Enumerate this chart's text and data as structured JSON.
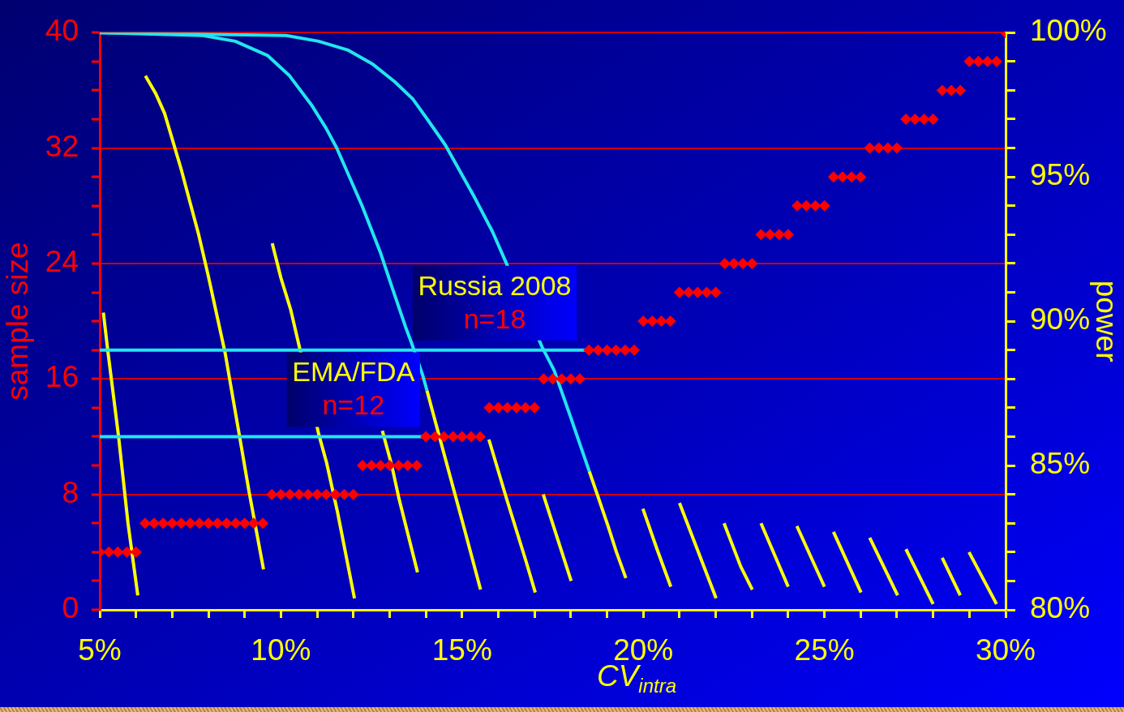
{
  "chart_data": {
    "type": "line",
    "xlabel": "CV$_{intra}$",
    "ylabel": "sample size",
    "y2label": "power",
    "xlim": [
      5,
      30
    ],
    "xticks": [
      {
        "value": 5,
        "label": "5%"
      },
      {
        "value": 6,
        "label": null
      },
      {
        "value": 7,
        "label": null
      },
      {
        "value": 8,
        "label": null
      },
      {
        "value": 9,
        "label": null
      },
      {
        "value": 10,
        "label": "10%"
      },
      {
        "value": 11,
        "label": null
      },
      {
        "value": 12,
        "label": null
      },
      {
        "value": 13,
        "label": null
      },
      {
        "value": 14,
        "label": null
      },
      {
        "value": 15,
        "label": "15%"
      },
      {
        "value": 16,
        "label": null
      },
      {
        "value": 17,
        "label": null
      },
      {
        "value": 18,
        "label": null
      },
      {
        "value": 19,
        "label": null
      },
      {
        "value": 20,
        "label": "20%"
      },
      {
        "value": 21,
        "label": null
      },
      {
        "value": 22,
        "label": null
      },
      {
        "value": 23,
        "label": null
      },
      {
        "value": 24,
        "label": null
      },
      {
        "value": 25,
        "label": "25%"
      },
      {
        "value": 26,
        "label": null
      },
      {
        "value": 27,
        "label": null
      },
      {
        "value": 28,
        "label": null
      },
      {
        "value": 29,
        "label": null
      },
      {
        "value": 30,
        "label": "30%"
      }
    ],
    "ylim": [
      0,
      40
    ],
    "yticks": [
      0,
      {
        "value": 2,
        "label": null
      },
      {
        "value": 4,
        "label": null
      },
      {
        "value": 6,
        "label": null
      },
      8,
      {
        "value": 10,
        "label": null
      },
      {
        "value": 12,
        "label": null
      },
      {
        "value": 14,
        "label": null
      },
      16,
      {
        "value": 18,
        "label": null
      },
      {
        "value": 20,
        "label": null
      },
      {
        "value": 22,
        "label": null
      },
      24,
      {
        "value": 26,
        "label": null
      },
      {
        "value": 28,
        "label": null
      },
      {
        "value": 30,
        "label": null
      },
      32,
      {
        "value": 34,
        "label": null
      },
      {
        "value": 36,
        "label": null
      },
      {
        "value": 38,
        "label": null
      },
      40
    ],
    "y2lim": [
      80,
      100
    ],
    "y2ticks": [
      {
        "value": 80,
        "label": "80%"
      },
      {
        "value": 81,
        "label": null
      },
      {
        "value": 82,
        "label": null
      },
      {
        "value": 83,
        "label": null
      },
      {
        "value": 84,
        "label": null
      },
      {
        "value": 85,
        "label": "85%"
      },
      {
        "value": 86,
        "label": null
      },
      {
        "value": 87,
        "label": null
      },
      {
        "value": 88,
        "label": null
      },
      {
        "value": 89,
        "label": null
      },
      {
        "value": 90,
        "label": "90%"
      },
      {
        "value": 91,
        "label": null
      },
      {
        "value": 92,
        "label": null
      },
      {
        "value": 93,
        "label": null
      },
      {
        "value": 94,
        "label": null
      },
      {
        "value": 95,
        "label": "95%"
      },
      {
        "value": 96,
        "label": null
      },
      {
        "value": 97,
        "label": null
      },
      {
        "value": 98,
        "label": null
      },
      {
        "value": 99,
        "label": null
      },
      {
        "value": 100,
        "label": "100%"
      }
    ],
    "grid": "y",
    "legend": false,
    "annotations": [
      {
        "text": "Russia 2008\nn=18",
        "x": 15.9,
        "y": 18
      },
      {
        "text": "EMA/FDA\nn=12",
        "x": 12.0,
        "y": 12
      }
    ],
    "series": [
      {
        "type": "scatter",
        "color": "#ff0000",
        "marker": "diamond",
        "x": [
          5,
          5.25,
          5.5,
          5.75,
          6,
          6.25,
          6.5,
          6.75,
          7,
          7.25,
          7.5,
          7.75,
          8,
          8.25,
          8.5,
          8.75,
          9,
          9.25,
          9.5,
          9.75,
          10,
          10.25,
          10.5,
          10.75,
          11,
          11.25,
          11.5,
          11.75,
          12,
          12.25,
          12.5,
          12.75,
          13,
          13.25,
          13.5,
          13.75,
          14,
          14.25,
          14.5,
          14.75,
          15,
          15.25,
          15.5,
          15.75,
          16,
          16.25,
          16.5,
          16.75,
          17,
          17.25,
          17.5,
          17.75,
          18,
          18.25,
          18.5,
          18.75,
          19,
          19.25,
          19.5,
          19.75,
          20,
          20.25,
          20.5,
          20.75,
          21,
          21.25,
          21.5,
          21.75,
          22,
          22.25,
          22.5,
          22.75,
          23,
          23.25,
          23.5,
          23.75,
          24,
          24.25,
          24.5,
          24.75,
          25,
          25.25,
          25.5,
          25.75,
          26,
          26.25,
          26.5,
          26.75,
          27,
          27.25,
          27.5,
          27.75,
          28,
          28.25,
          28.5,
          28.75,
          29,
          29.25,
          29.5,
          29.75,
          30
        ],
        "values": [
          4,
          4,
          4,
          4,
          4,
          6,
          6,
          6,
          6,
          6,
          6,
          6,
          6,
          6,
          6,
          6,
          6,
          6,
          6,
          8,
          8,
          8,
          8,
          8,
          8,
          8,
          8,
          8,
          8,
          10,
          10,
          10,
          10,
          10,
          10,
          10,
          12,
          12,
          12,
          12,
          12,
          12,
          12,
          14,
          14,
          14,
          14,
          14,
          14,
          16,
          16,
          16,
          16,
          16,
          18,
          18,
          18,
          18,
          18,
          18,
          20,
          20,
          20,
          20,
          22,
          22,
          22,
          22,
          22,
          24,
          24,
          24,
          24,
          26,
          26,
          26,
          26,
          28,
          28,
          28,
          28,
          30,
          30,
          30,
          30,
          32,
          32,
          32,
          32,
          34,
          34,
          34,
          34,
          36,
          36,
          36,
          38,
          38,
          38,
          38,
          40
        ]
      },
      {
        "type": "line",
        "axis": "y2",
        "color": "#22e5ee",
        "marker": "none",
        "x": [
          5,
          7.84,
          8.74,
          9.64,
          10.24,
          10.84,
          11.24,
          11.54,
          12.24,
          12.74,
          13.06,
          13.44,
          13.59,
          13.92,
          14.03
        ],
        "values": [
          100,
          99.9,
          99.7,
          99.2,
          98.5,
          97.5,
          96.7,
          96.0,
          94.0,
          92.4,
          91.2,
          89.8,
          89.3,
          88.1,
          87.6
        ]
      },
      {
        "type": "line",
        "axis": "y2",
        "color": "#22e5ee",
        "marker": "none",
        "x": [
          5,
          10.14,
          11.04,
          11.84,
          12.54,
          13.14,
          13.64,
          14.04,
          14.54,
          14.94,
          15.34,
          15.84,
          16.19,
          17.21,
          17.54,
          17.99,
          18.29,
          18.51
        ],
        "values": [
          100,
          99.9,
          99.7,
          99.4,
          98.9,
          98.3,
          97.7,
          97.0,
          96.1,
          95.2,
          94.3,
          93.1,
          92.1,
          89.1,
          88.3,
          86.7,
          85.6,
          84.8
        ]
      },
      {
        "type": "line",
        "color": "#22e5ee",
        "marker": "none",
        "x": [
          5,
          18.5
        ],
        "values": [
          18,
          18
        ]
      },
      {
        "type": "line",
        "color": "#22e5ee",
        "marker": "none",
        "x": [
          5,
          14
        ],
        "values": [
          12,
          12
        ]
      },
      {
        "type": "line",
        "axis": "y2",
        "color": "#ffff00",
        "marker": "none",
        "x": [
          5.1,
          5.22,
          5.52,
          5.78,
          6.05
        ],
        "values": [
          90.3,
          89.0,
          86.0,
          83.0,
          80.5
        ]
      },
      {
        "type": "line",
        "axis": "y2",
        "color": "#ffff00",
        "marker": "none",
        "x": [
          6.26,
          6.54,
          6.79,
          7.24,
          7.73,
          7.99,
          8.46,
          8.86,
          9.12,
          9.52
        ],
        "values": [
          98.5,
          97.9,
          97.2,
          95.3,
          93.0,
          91.6,
          88.9,
          86.0,
          84.1,
          81.4
        ]
      },
      {
        "type": "line",
        "axis": "y2",
        "color": "#ffff00",
        "marker": "none",
        "x": [
          9.76,
          10.0,
          10.27,
          10.53,
          11.04,
          11.26,
          11.56,
          12.03
        ],
        "values": [
          92.7,
          91.5,
          90.4,
          89.0,
          86.1,
          85.1,
          83.4,
          80.4
        ]
      },
      {
        "type": "line",
        "axis": "y2",
        "color": "#ffff00",
        "marker": "none",
        "x": [
          12.8,
          13.06,
          13.25,
          13.51,
          13.77
        ],
        "values": [
          86.2,
          85.0,
          83.9,
          82.6,
          81.3
        ]
      },
      {
        "type": "line",
        "axis": "y2",
        "color": "#ffff00",
        "marker": "none",
        "x": [
          14.03,
          14.33,
          14.74,
          15.0,
          15.51
        ],
        "values": [
          87.6,
          86.2,
          84.3,
          83.1,
          80.7
        ]
      },
      {
        "type": "line",
        "axis": "y2",
        "color": "#ffff00",
        "marker": "none",
        "x": [
          15.74,
          16.24,
          16.76,
          17.02
        ],
        "values": [
          85.9,
          83.8,
          81.7,
          80.6
        ]
      },
      {
        "type": "line",
        "axis": "y2",
        "color": "#ffff00",
        "marker": "none",
        "x": [
          17.24,
          18.01
        ],
        "values": [
          84.0,
          81.0
        ]
      },
      {
        "type": "line",
        "axis": "y2",
        "color": "#ffff00",
        "marker": "none",
        "x": [
          18.51,
          18.73,
          19.03,
          19.26,
          19.52
        ],
        "values": [
          84.8,
          84.0,
          82.9,
          82.0,
          81.1
        ]
      },
      {
        "type": "line",
        "axis": "y2",
        "color": "#ffff00",
        "marker": "none",
        "x": [
          19.99,
          20.38,
          20.76
        ],
        "values": [
          83.5,
          82.1,
          80.8
        ]
      },
      {
        "type": "line",
        "axis": "y2",
        "color": "#ffff00",
        "marker": "none",
        "x": [
          21.0,
          21.49,
          22.01
        ],
        "values": [
          83.7,
          82.1,
          80.4
        ]
      },
      {
        "type": "line",
        "axis": "y2",
        "color": "#ffff00",
        "marker": "none",
        "x": [
          22.23,
          22.69,
          23.01
        ],
        "values": [
          83.0,
          81.5,
          80.7
        ]
      },
      {
        "type": "line",
        "axis": "y2",
        "color": "#ffff00",
        "marker": "none",
        "x": [
          23.25,
          24.0
        ],
        "values": [
          83.0,
          80.8
        ]
      },
      {
        "type": "line",
        "axis": "y2",
        "color": "#ffff00",
        "marker": "none",
        "x": [
          24.24,
          25.0
        ],
        "values": [
          82.9,
          80.8
        ]
      },
      {
        "type": "line",
        "axis": "y2",
        "color": "#ffff00",
        "marker": "none",
        "x": [
          25.25,
          26.01
        ],
        "values": [
          82.7,
          80.6
        ]
      },
      {
        "type": "line",
        "axis": "y2",
        "color": "#ffff00",
        "marker": "none",
        "x": [
          26.25,
          27.02
        ],
        "values": [
          82.5,
          80.5
        ]
      },
      {
        "type": "line",
        "axis": "y2",
        "color": "#ffff00",
        "marker": "none",
        "x": [
          27.25,
          28.0
        ],
        "values": [
          82.1,
          80.2
        ]
      },
      {
        "type": "line",
        "axis": "y2",
        "color": "#ffff00",
        "marker": "none",
        "x": [
          28.25,
          28.75
        ],
        "values": [
          81.8,
          80.5
        ]
      },
      {
        "type": "line",
        "axis": "y2",
        "color": "#ffff00",
        "marker": "none",
        "x": [
          28.99,
          29.75
        ],
        "values": [
          82.0,
          80.2
        ]
      }
    ]
  }
}
